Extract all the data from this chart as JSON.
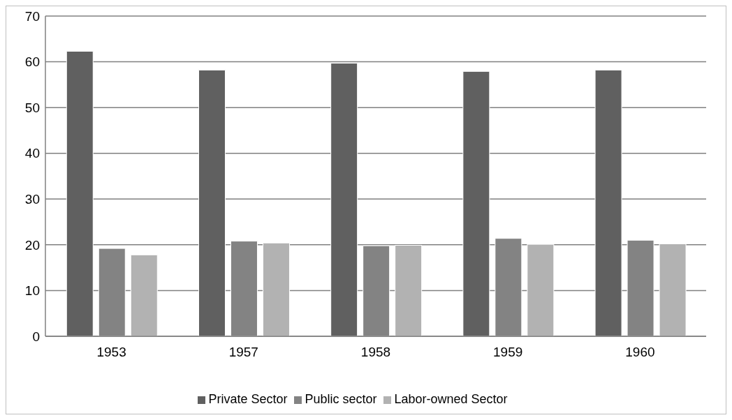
{
  "chart_data": {
    "type": "bar",
    "categories": [
      "1953",
      "1957",
      "1958",
      "1959",
      "1960"
    ],
    "series": [
      {
        "name": "Private Sector",
        "color": "#606060",
        "values": [
          62.3,
          58.2,
          59.7,
          57.9,
          58.2
        ]
      },
      {
        "name": "Public sector",
        "color": "#838383",
        "values": [
          19.2,
          20.8,
          19.8,
          21.4,
          21.0
        ]
      },
      {
        "name": "Labor-owned Sector",
        "color": "#b2b2b2",
        "values": [
          17.8,
          20.4,
          19.9,
          20.1,
          20.2
        ]
      }
    ],
    "ylim": [
      0,
      70
    ],
    "yticks": [
      0,
      10,
      20,
      30,
      40,
      50,
      60,
      70
    ],
    "grid": "y",
    "legend": "bottom"
  }
}
